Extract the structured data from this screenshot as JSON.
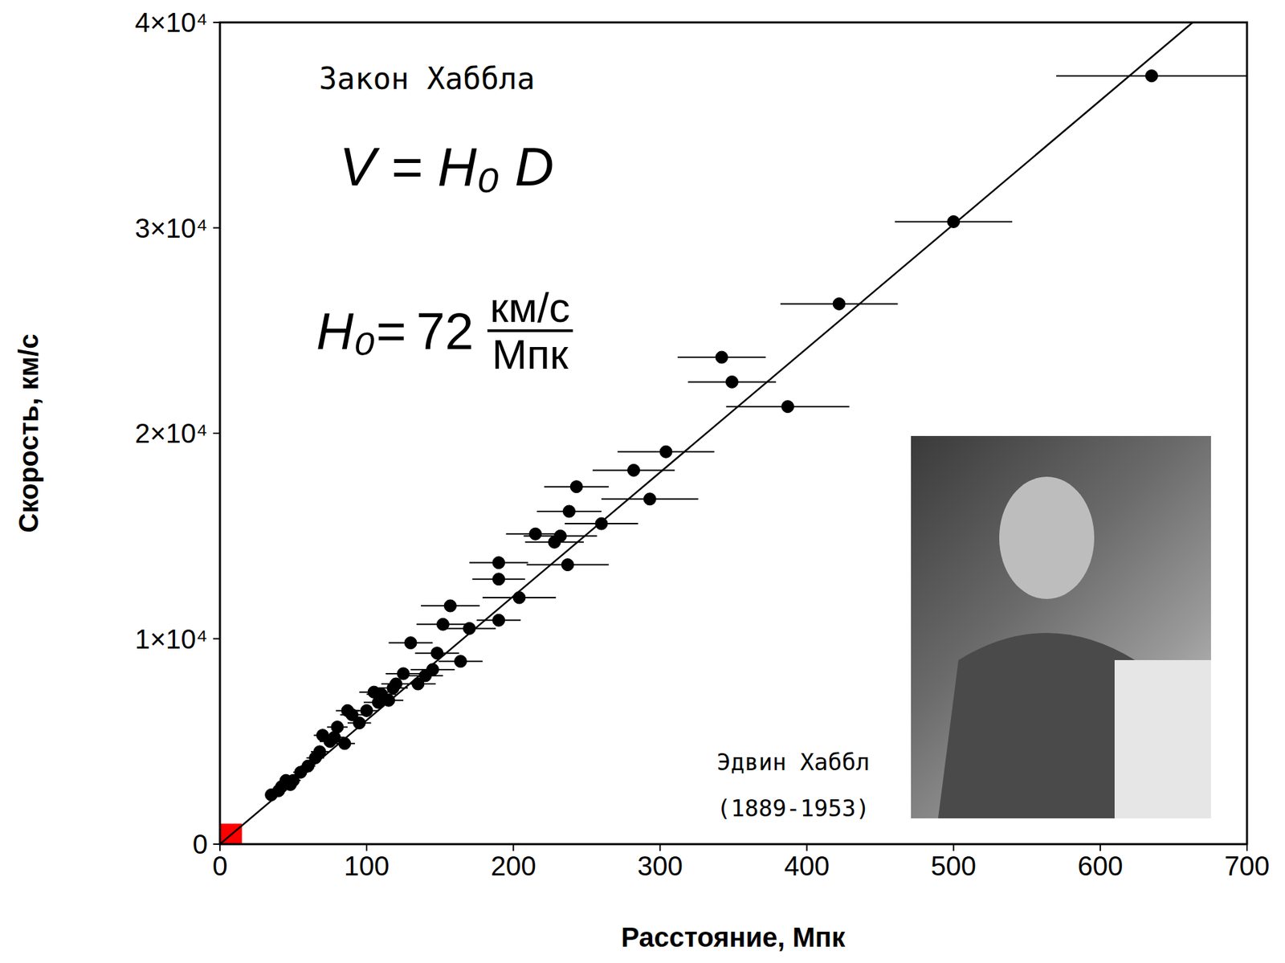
{
  "chart_data": {
    "type": "scatter",
    "title": "Закон Хаббла",
    "x_label": "Расстояние, Мпк",
    "y_label": "Скорость, км/с",
    "x": [
      635,
      500,
      422,
      342,
      349,
      387,
      304,
      282,
      293,
      243,
      238,
      260,
      215,
      232,
      228,
      237,
      190,
      190,
      204,
      157,
      190,
      170,
      152,
      164,
      130,
      148,
      145,
      140,
      125,
      135,
      118,
      110,
      105,
      115,
      100,
      95,
      87,
      85,
      80,
      75,
      70,
      65,
      60,
      55,
      50,
      45,
      42,
      35,
      40,
      48,
      68,
      78,
      90,
      108,
      120
    ],
    "values": [
      37400,
      30300,
      26300,
      23700,
      22500,
      21300,
      19100,
      18200,
      16800,
      17400,
      16200,
      15600,
      15100,
      15000,
      14700,
      13600,
      13700,
      12900,
      12000,
      11600,
      10900,
      10500,
      10700,
      8900,
      9800,
      9300,
      8500,
      8200,
      8300,
      7800,
      7600,
      7300,
      7400,
      7000,
      6500,
      5900,
      6500,
      4900,
      5700,
      5000,
      5300,
      4200,
      3800,
      3500,
      3100,
      3100,
      2800,
      2400,
      2600,
      2900,
      4500,
      5200,
      6300,
      6900,
      7800
    ],
    "x_error": [
      65,
      40,
      40,
      30,
      30,
      42,
      33,
      28,
      33,
      22,
      22,
      25,
      20,
      25,
      20,
      28,
      20,
      18,
      25,
      20,
      15,
      18,
      18,
      15,
      15,
      15,
      15,
      12,
      12,
      12,
      10,
      10,
      10,
      10,
      8,
      8,
      8,
      7,
      7,
      7,
      6,
      6,
      5,
      5,
      5,
      4,
      4,
      4,
      4,
      4,
      6,
      7,
      8,
      10,
      10
    ],
    "color": "#000000",
    "marker": "circle",
    "grid": false,
    "xlim": [
      0,
      700
    ],
    "ylim": [
      0,
      40000
    ],
    "xticks": [
      0,
      100,
      200,
      300,
      400,
      500,
      600,
      700
    ],
    "yticks": [
      0,
      {
        "value": 10000,
        "label": "1×10⁴"
      },
      {
        "value": 20000,
        "label": "2×10⁴"
      },
      {
        "value": 30000,
        "label": "3×10⁴"
      },
      {
        "value": 40000,
        "label": "4×10⁴"
      }
    ],
    "fit_line": {
      "x": [
        0,
        663
      ],
      "y": [
        0,
        40000
      ],
      "color": "#000000"
    },
    "highlight": {
      "x": [
        0,
        15
      ],
      "y": [
        0,
        1000
      ],
      "color": "#ff0000"
    },
    "formula": "V = H₀ D",
    "hubble_constant": {
      "label": "H₀=",
      "value": 72,
      "unit_numerator": "км/с",
      "unit_denominator": "Мпк"
    },
    "photo_caption": [
      "Эдвин Хаббл",
      "(1889-1953)"
    ]
  }
}
